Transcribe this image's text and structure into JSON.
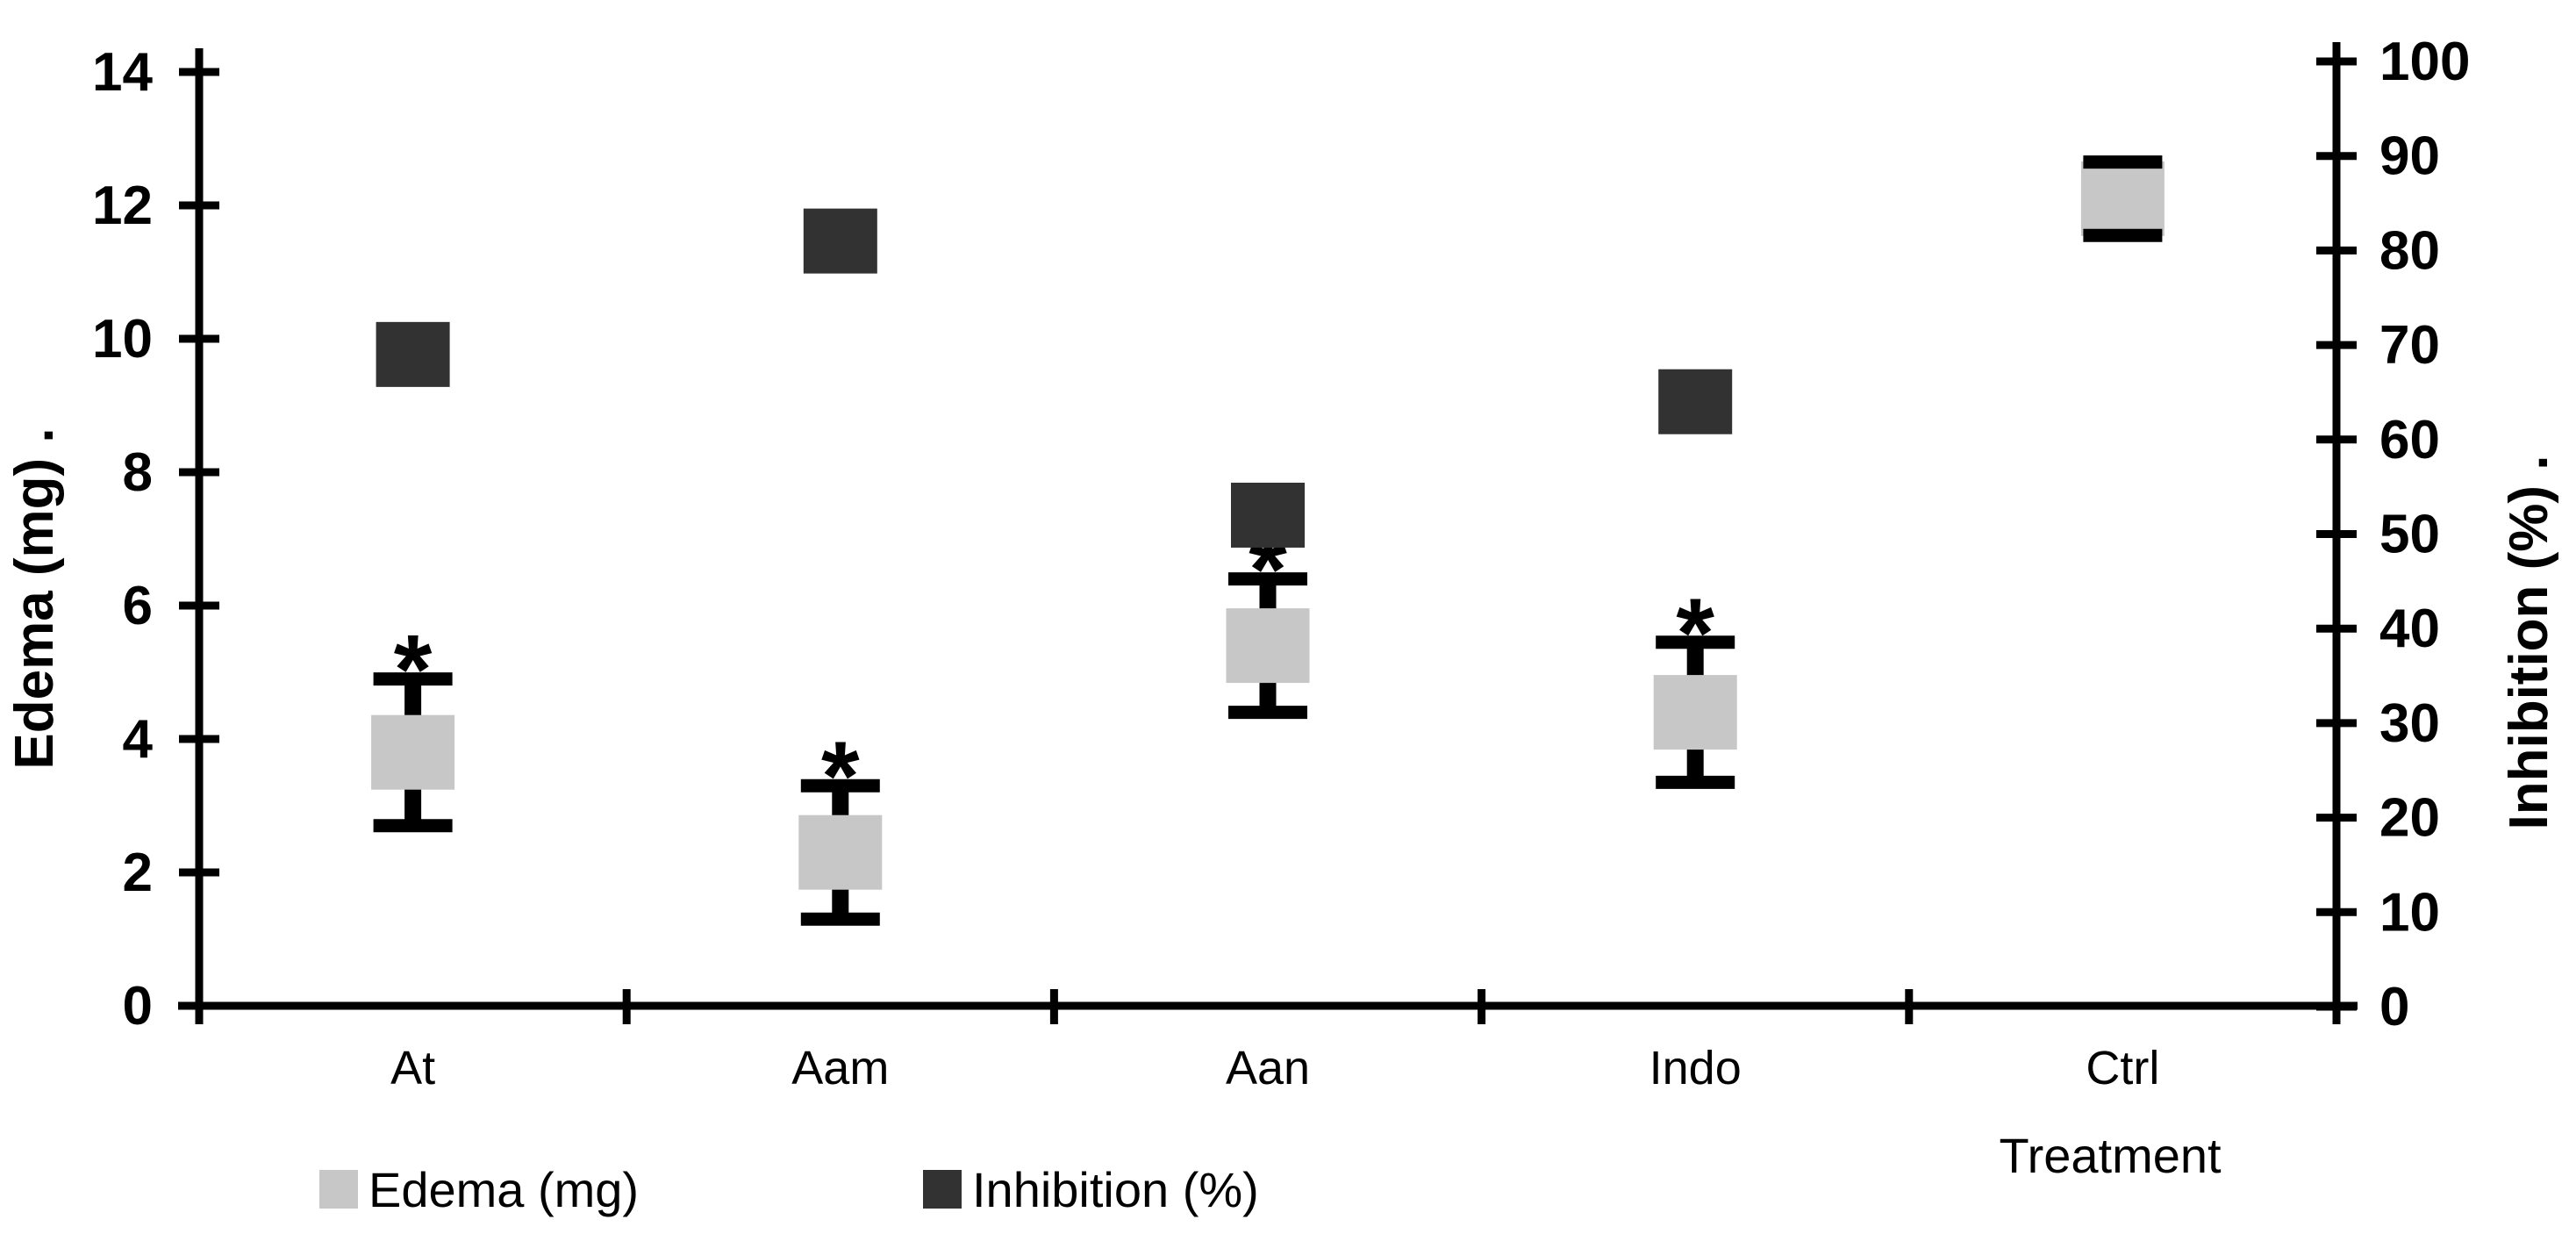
{
  "chart_data": {
    "type": "scatter",
    "title": "",
    "categories": [
      "At",
      "Aam",
      "Aan",
      "Indo",
      "Ctrl"
    ],
    "x_axis": {
      "title": "Treatment"
    },
    "left_axis": {
      "title": "Edema (mg) .",
      "min": 0,
      "max": 14,
      "step": 2,
      "ticks": [
        0,
        2,
        4,
        6,
        8,
        10,
        12,
        14
      ]
    },
    "right_axis": {
      "title": "Inhibition (%) .",
      "min": 0,
      "max": 100,
      "step": 10,
      "ticks": [
        0,
        10,
        20,
        30,
        40,
        50,
        60,
        70,
        80,
        90,
        100
      ]
    },
    "series": [
      {
        "name": "Edema (mg)",
        "axis": "left",
        "marker": "square",
        "color": "#c7c7c7",
        "values": [
          3.8,
          2.3,
          5.4,
          4.4,
          12.1
        ],
        "error": [
          1.1,
          1.0,
          1.0,
          1.05,
          0.55
        ],
        "significant": [
          true,
          true,
          true,
          true,
          false
        ]
      },
      {
        "name": "Inhibition (%)",
        "axis": "right",
        "marker": "square",
        "color": "#323232",
        "values": [
          69,
          81,
          52,
          64,
          null
        ],
        "error": null,
        "significant": null
      }
    ],
    "significance_marker": "*",
    "error_bars": true,
    "grid": false,
    "legend_position": "bottom",
    "axis_color": "#000000",
    "background": "#ffffff"
  }
}
